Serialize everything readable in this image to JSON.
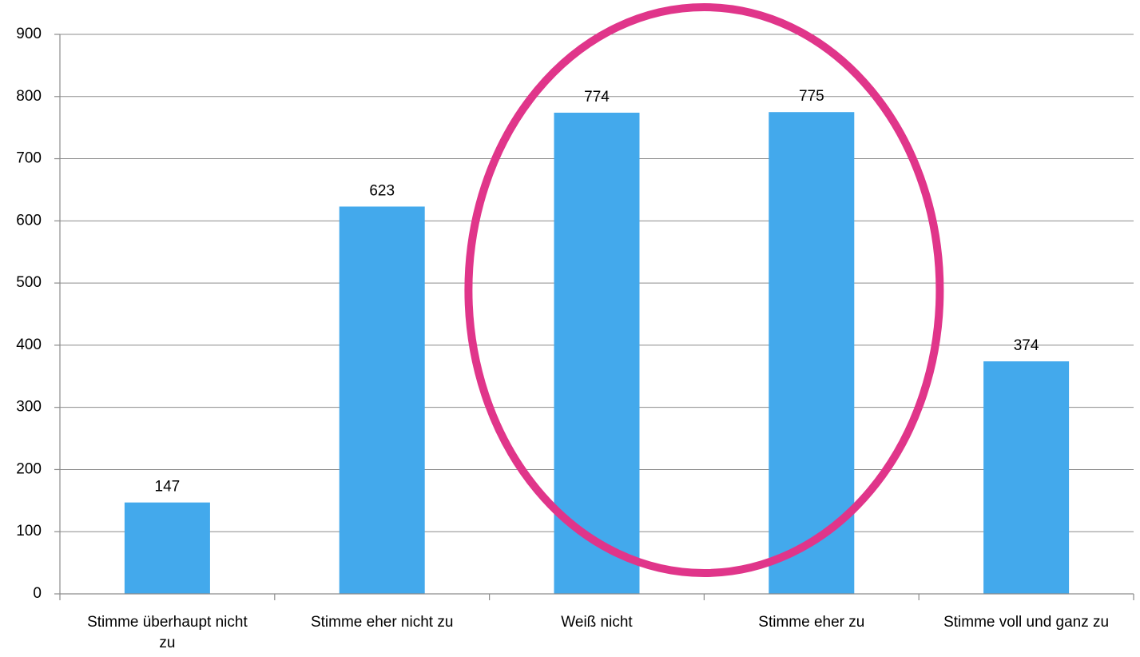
{
  "chart_data": {
    "type": "bar",
    "title": "",
    "xlabel": "",
    "ylabel": "",
    "categories": [
      "Stimme überhaupt nicht zu",
      "Stimme eher nicht zu",
      "Weiß nicht",
      "Stimme eher zu",
      "Stimme voll und ganz zu"
    ],
    "category_label_lines": [
      [
        "Stimme überhaupt nicht",
        "zu"
      ],
      [
        "Stimme eher nicht zu"
      ],
      [
        "Weiß nicht"
      ],
      [
        "Stimme eher zu"
      ],
      [
        "Stimme voll und ganz zu"
      ]
    ],
    "values": [
      147,
      623,
      774,
      775,
      374
    ],
    "data_labels": [
      "147",
      "623",
      "774",
      "775",
      "374"
    ],
    "ylim": [
      0,
      900
    ],
    "y_ticks": [
      "0",
      "100",
      "200",
      "300",
      "400",
      "500",
      "600",
      "700",
      "800",
      "900"
    ],
    "grid": true,
    "legend": "none",
    "bar_color": "#43a9ec",
    "highlight": {
      "shape": "ellipse",
      "color": "#e0358a",
      "categories": [
        "Weiß nicht",
        "Stimme eher zu"
      ]
    }
  }
}
